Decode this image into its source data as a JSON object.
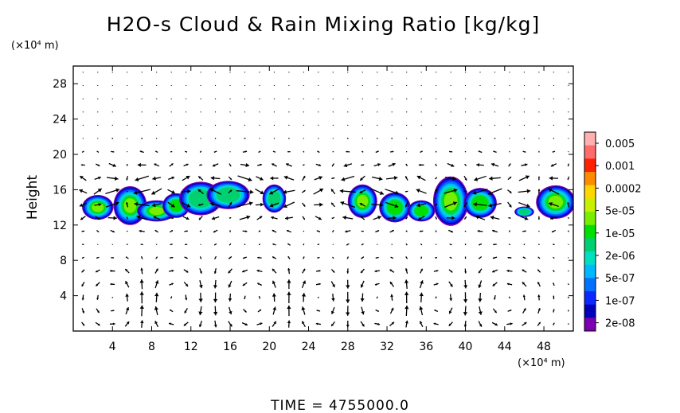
{
  "chart_data": {
    "type": "heatmap",
    "title": "H2O-s Cloud & Rain Mixing Ratio [kg/kg]",
    "xlabel": "",
    "ylabel": "Height",
    "x_unit": "(×10⁴ m)",
    "y_unit": "(×10⁴ m)",
    "xlim": [
      0,
      51
    ],
    "ylim": [
      0,
      30
    ],
    "xticks": [
      4,
      8,
      12,
      16,
      20,
      24,
      28,
      32,
      36,
      40,
      44,
      48
    ],
    "yticks": [
      4,
      8,
      12,
      16,
      20,
      24,
      28
    ],
    "footer": "TIME = 4755000.0",
    "colorbar": {
      "labels": [
        "0.005",
        "0.001",
        "0.0002",
        "5e-05",
        "1e-05",
        "2e-06",
        "5e-07",
        "1e-07",
        "2e-08"
      ],
      "colors": [
        "#ffb0b0",
        "#ff6a6a",
        "#ff2200",
        "#ff8c00",
        "#ffd700",
        "#c8f000",
        "#7aee00",
        "#00e000",
        "#00d070",
        "#00e0c0",
        "#00b8ff",
        "#0070ff",
        "#0a28ff",
        "#0000b8",
        "#7a00b0"
      ]
    },
    "cloud_blobs": [
      {
        "x": 2.5,
        "y": 14.0,
        "rx": 1.6,
        "ry": 1.4,
        "core": 0.6
      },
      {
        "x": 5.8,
        "y": 14.2,
        "rx": 1.7,
        "ry": 2.2,
        "core": 0.65
      },
      {
        "x": 8.5,
        "y": 13.6,
        "rx": 2.0,
        "ry": 1.2,
        "core": 0.6
      },
      {
        "x": 10.5,
        "y": 14.2,
        "rx": 1.4,
        "ry": 1.4,
        "core": 0.55
      },
      {
        "x": 13.0,
        "y": 15.0,
        "rx": 2.2,
        "ry": 1.9,
        "core": 0.5
      },
      {
        "x": 15.8,
        "y": 15.4,
        "rx": 2.2,
        "ry": 1.6,
        "core": 0.45
      },
      {
        "x": 20.5,
        "y": 15.0,
        "rx": 1.2,
        "ry": 1.6,
        "core": 0.4
      },
      {
        "x": 29.5,
        "y": 14.7,
        "rx": 1.5,
        "ry": 1.9,
        "core": 0.6
      },
      {
        "x": 32.8,
        "y": 14.0,
        "rx": 1.6,
        "ry": 1.7,
        "core": 0.55
      },
      {
        "x": 35.5,
        "y": 13.6,
        "rx": 1.4,
        "ry": 1.2,
        "core": 0.55
      },
      {
        "x": 38.5,
        "y": 14.7,
        "rx": 1.8,
        "ry": 2.8,
        "core": 0.6
      },
      {
        "x": 41.5,
        "y": 14.5,
        "rx": 1.7,
        "ry": 1.7,
        "core": 0.55
      },
      {
        "x": 46.0,
        "y": 13.5,
        "rx": 1.0,
        "ry": 0.6,
        "core": 0.45
      },
      {
        "x": 49.2,
        "y": 14.6,
        "rx": 2.0,
        "ry": 1.9,
        "core": 0.6
      }
    ],
    "vortices": [
      {
        "x": 4.5,
        "y": 3.5,
        "r": 4.0,
        "sense": 1
      },
      {
        "x": 10.0,
        "y": 3.5,
        "r": 4.0,
        "sense": -1
      },
      {
        "x": 18.5,
        "y": 3.5,
        "r": 4.5,
        "sense": 1
      },
      {
        "x": 25.0,
        "y": 3.5,
        "r": 3.5,
        "sense": -1
      },
      {
        "x": 31.5,
        "y": 3.5,
        "r": 4.0,
        "sense": 1
      },
      {
        "x": 37.0,
        "y": 3.5,
        "r": 3.5,
        "sense": -1
      },
      {
        "x": 44.0,
        "y": 3.5,
        "r": 4.0,
        "sense": 1
      }
    ],
    "upper_flow_band": {
      "y": 15.5,
      "halfwidth": 4.0
    }
  }
}
